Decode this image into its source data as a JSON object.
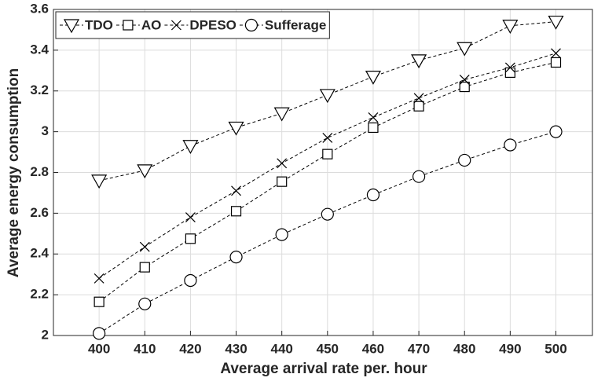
{
  "chart_data": {
    "type": "line",
    "x_label": "Average arrival rate per. hour",
    "y_label": "Average energy consumption",
    "x": [
      400,
      410,
      420,
      430,
      440,
      450,
      460,
      470,
      480,
      490,
      500
    ],
    "xlim": [
      390,
      508
    ],
    "xticks": [
      400,
      410,
      420,
      430,
      440,
      450,
      460,
      470,
      480,
      490,
      500
    ],
    "ylim": [
      2,
      3.6
    ],
    "yticks": [
      2,
      2.2,
      2.4,
      2.6,
      2.8,
      3,
      3.2,
      3.4,
      3.6
    ],
    "grid": true,
    "legend": "top-left",
    "series": [
      {
        "name": "TDO",
        "color": "#000000",
        "marker": "triangle-down",
        "values": [
          2.76,
          2.81,
          2.93,
          3.02,
          3.09,
          3.18,
          3.27,
          3.35,
          3.41,
          3.52,
          3.54
        ]
      },
      {
        "name": "AO",
        "color": "#000000",
        "marker": "square",
        "values": [
          2.165,
          2.335,
          2.475,
          2.61,
          2.755,
          2.89,
          3.02,
          3.125,
          3.22,
          3.29,
          3.34
        ]
      },
      {
        "name": "DPESO",
        "color": "#000000",
        "marker": "x",
        "values": [
          2.28,
          2.435,
          2.58,
          2.71,
          2.845,
          2.97,
          3.07,
          3.165,
          3.255,
          3.315,
          3.385
        ]
      },
      {
        "name": "Sufferage",
        "color": "#000000",
        "marker": "circle",
        "values": [
          2.01,
          2.155,
          2.27,
          2.385,
          2.495,
          2.595,
          2.69,
          2.78,
          2.86,
          2.935,
          3.0
        ]
      }
    ]
  }
}
